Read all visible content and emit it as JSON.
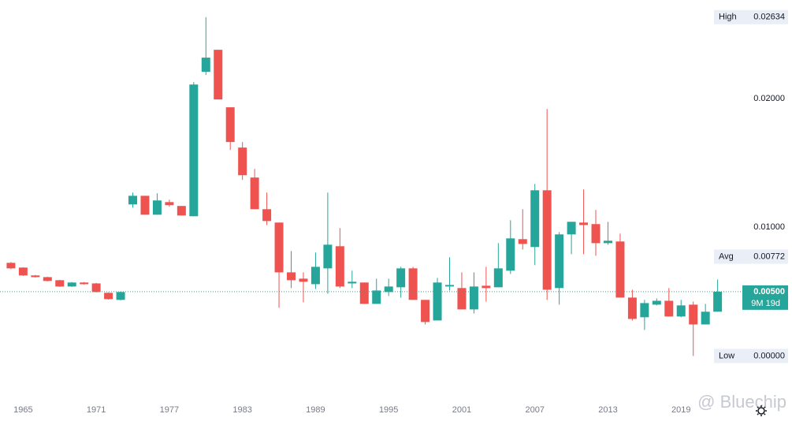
{
  "chart_data": {
    "type": "candlestick",
    "x": [
      1964,
      1965,
      1966,
      1967,
      1968,
      1969,
      1970,
      1971,
      1972,
      1973,
      1974,
      1975,
      1976,
      1977,
      1978,
      1979,
      1980,
      1981,
      1982,
      1983,
      1984,
      1985,
      1986,
      1987,
      1988,
      1989,
      1990,
      1991,
      1992,
      1993,
      1994,
      1995,
      1996,
      1997,
      1998,
      1999,
      2000,
      2001,
      2002,
      2003,
      2004,
      2005,
      2006,
      2007,
      2008,
      2009,
      2010,
      2011,
      2012,
      2013,
      2014,
      2015,
      2016,
      2017,
      2018,
      2019,
      2020,
      2021,
      2022
    ],
    "open": [
      0.00724,
      0.00687,
      0.00626,
      0.00613,
      0.00589,
      0.0054,
      0.00571,
      0.00564,
      0.00491,
      0.00436,
      0.01178,
      0.01245,
      0.01098,
      0.01196,
      0.01166,
      0.01086,
      0.02209,
      0.0238,
      0.01933,
      0.0162,
      0.01387,
      0.01141,
      0.01037,
      0.0065,
      0.00601,
      0.00558,
      0.00681,
      0.00853,
      0.00564,
      0.00571,
      0.00405,
      0.00497,
      0.00534,
      0.00681,
      0.00436,
      0.00276,
      0.0054,
      0.00528,
      0.00362,
      0.00546,
      0.00534,
      0.00663,
      0.00908,
      0.00847,
      0.01288,
      0.00528,
      0.00945,
      0.01037,
      0.01025,
      0.00877,
      0.0089,
      0.00454,
      0.00301,
      0.00399,
      0.00429,
      0.00307,
      0.00399,
      0.00245,
      0.00344
    ],
    "high": [
      0.0073,
      0.0069,
      0.0063,
      0.00616,
      0.00592,
      0.00575,
      0.00575,
      0.00568,
      0.00494,
      0.005,
      0.0127,
      0.01245,
      0.01264,
      0.01215,
      0.01166,
      0.02129,
      0.02634,
      0.0238,
      0.01933,
      0.01663,
      0.01454,
      0.0127,
      0.01037,
      0.00816,
      0.0065,
      0.00804,
      0.0127,
      0.00994,
      0.00663,
      0.00571,
      0.00601,
      0.00601,
      0.00693,
      0.00693,
      0.00436,
      0.00607,
      0.00767,
      0.0065,
      0.0065,
      0.00693,
      0.00877,
      0.01055,
      0.01141,
      0.01337,
      0.0192,
      0.00963,
      0.01043,
      0.01294,
      0.01135,
      0.01043,
      0.00951,
      0.00515,
      0.00436,
      0.00448,
      0.00528,
      0.00436,
      0.00423,
      0.00405,
      0.00595
    ],
    "low": [
      0.00675,
      0.00622,
      0.0061,
      0.0058,
      0.00537,
      0.00537,
      0.00555,
      0.00494,
      0.00438,
      0.00433,
      0.01153,
      0.01098,
      0.01098,
      0.0116,
      0.01092,
      0.01086,
      0.02184,
      0.01994,
      0.01601,
      0.01368,
      0.01141,
      0.01018,
      0.00374,
      0.00528,
      0.00417,
      0.00521,
      0.00485,
      0.00528,
      0.00528,
      0.00405,
      0.00405,
      0.00466,
      0.00454,
      0.00436,
      0.00245,
      0.00276,
      0.00509,
      0.00362,
      0.00331,
      0.00423,
      0.00534,
      0.00638,
      0.00828,
      0.00706,
      0.00436,
      0.00399,
      0.00791,
      0.00791,
      0.00779,
      0.00865,
      0.00454,
      0.00276,
      0.00202,
      0.00393,
      0.00307,
      0.00301,
      0,
      0.00245,
      0.00344
    ],
    "close": [
      0.00681,
      0.00626,
      0.00613,
      0.00583,
      0.0054,
      0.00571,
      0.00558,
      0.00497,
      0.00442,
      0.00497,
      0.01245,
      0.01098,
      0.01209,
      0.01172,
      0.01092,
      0.0211,
      0.02319,
      0.01994,
      0.01663,
      0.01405,
      0.01141,
      0.01049,
      0.0065,
      0.00589,
      0.00577,
      0.00693,
      0.00865,
      0.0054,
      0.00577,
      0.00405,
      0.00509,
      0.0054,
      0.00681,
      0.00436,
      0.00264,
      0.00571,
      0.00552,
      0.00362,
      0.0054,
      0.00528,
      0.00681,
      0.00914,
      0.00871,
      0.01288,
      0.00515,
      0.00945,
      0.01043,
      0.01018,
      0.00877,
      0.00896,
      0.00454,
      0.00288,
      0.00411,
      0.00429,
      0.00307,
      0.00393,
      0.00245,
      0.00344,
      0.005
    ],
    "up_color": "#26a69a",
    "down_color": "#ef5350",
    "xlim": [
      1963.1,
      2023.9
    ],
    "xticks": [
      1965,
      1971,
      1977,
      1983,
      1989,
      1995,
      2001,
      2007,
      2013,
      2019
    ],
    "ylim": [
      -0.0033,
      0.02767
    ],
    "yticks": [
      {
        "value": 0.01,
        "label": "0.01000"
      },
      {
        "value": 0.02,
        "label": "0.02000"
      }
    ],
    "grid": false,
    "markers": [
      {
        "name": "High",
        "value": 0.02634
      },
      {
        "name": "Avg",
        "value": 0.00772
      },
      {
        "name": "Low",
        "value": 0,
        "value_label": "0.00000"
      }
    ],
    "last": {
      "value": 0.005,
      "value_label": "0.00500",
      "countdown": "9M 19d"
    },
    "watermark": "@ Bluechip"
  }
}
